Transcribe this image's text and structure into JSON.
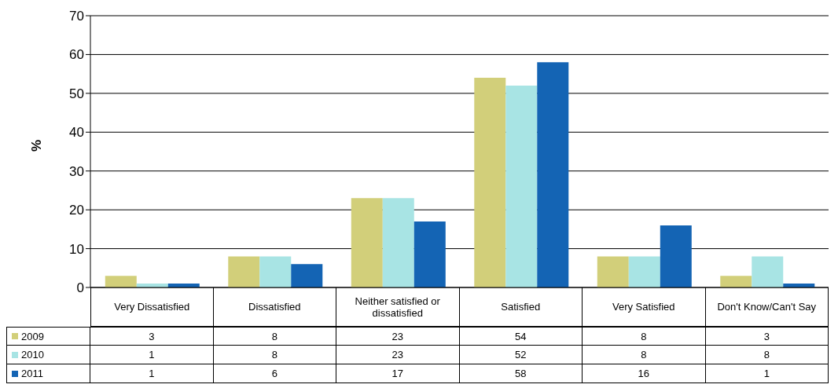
{
  "chart_data": {
    "type": "bar",
    "ylabel": "%",
    "categories": [
      "Very Dissatisfied",
      "Dissatisfied",
      "Neither satisfied or dissatisfied",
      "Satisfied",
      "Very Satisfied",
      "Don't Know/Can't Say"
    ],
    "series": [
      {
        "name": "2009",
        "color": "#d2cf7a",
        "values": [
          3,
          8,
          23,
          54,
          8,
          3
        ]
      },
      {
        "name": "2010",
        "color": "#a8e4e4",
        "values": [
          1,
          8,
          23,
          52,
          8,
          8
        ]
      },
      {
        "name": "2011",
        "color": "#1464b4",
        "values": [
          1,
          6,
          17,
          58,
          16,
          1
        ]
      }
    ],
    "ylim": [
      0,
      70
    ],
    "yticks": [
      0,
      10,
      20,
      30,
      40,
      50,
      60,
      70
    ],
    "grid": "y",
    "legend": "bottom left",
    "data_labels": true
  }
}
